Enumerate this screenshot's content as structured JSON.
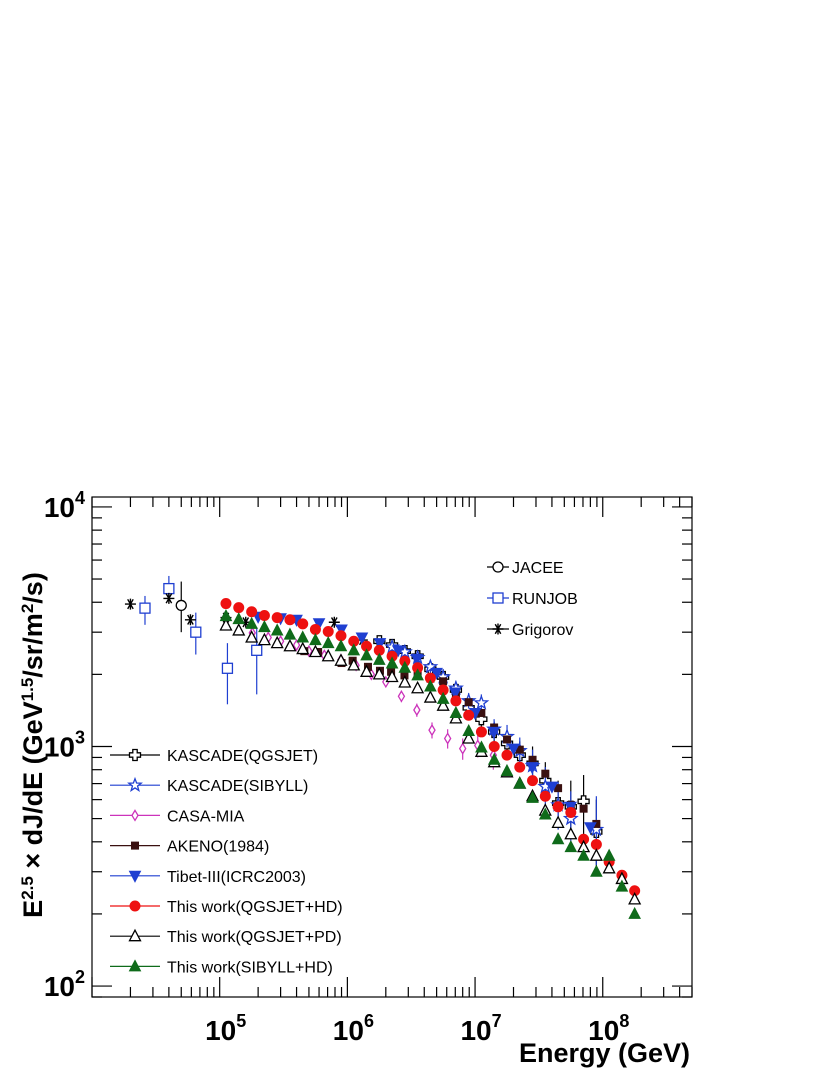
{
  "chart_data": {
    "type": "scatter",
    "title": "",
    "x_scale": "log",
    "y_scale": "log",
    "xlim": [
      10000,
      500000000
    ],
    "ylim": [
      90,
      11000
    ],
    "xlabel": "Energy (GeV)",
    "ylabel": {
      "base": "E",
      "sup1": "2.5",
      "mid": " × dJ/dE (GeV",
      "sup2": "1.5",
      "mid2": "/sr/m",
      "sup3": "2",
      "end": "/s)"
    },
    "x_ticks": [
      {
        "value": 100000,
        "base": "10",
        "exp": "5"
      },
      {
        "value": 1000000,
        "base": "10",
        "exp": "6"
      },
      {
        "value": 10000000,
        "base": "10",
        "exp": "7"
      },
      {
        "value": 100000000,
        "base": "10",
        "exp": "8"
      }
    ],
    "y_ticks": [
      {
        "value": 100,
        "base": "10",
        "exp": "2"
      },
      {
        "value": 1000,
        "base": "10",
        "exp": "3"
      },
      {
        "value": 10000,
        "base": "10",
        "exp": "4"
      }
    ],
    "grid": false,
    "series": [
      {
        "name": "JACEE",
        "marker": "circle-open",
        "color": "#000000",
        "legend": "top-right",
        "points": [
          [
            50000,
            3880,
            3000,
            4880
          ]
        ]
      },
      {
        "name": "RUNJOB",
        "marker": "square-open",
        "color": "#1f3fd1",
        "legend": "top-right",
        "points": [
          [
            26000,
            3780,
            3220,
            4250
          ],
          [
            40000,
            4560,
            4120,
            5150
          ],
          [
            65000,
            3000,
            2420,
            3620
          ],
          [
            115000,
            2120,
            1500,
            2700
          ],
          [
            195000,
            2520,
            1650,
            3150
          ]
        ]
      },
      {
        "name": "Grigorov",
        "marker": "star6",
        "color": "#000000",
        "legend": "top-right",
        "points": [
          [
            20000,
            3930
          ],
          [
            40000,
            4150
          ],
          [
            59000,
            3380
          ],
          [
            112000,
            3450
          ],
          [
            160000,
            3300
          ],
          [
            790000,
            3300
          ],
          [
            1310000,
            2780
          ]
        ]
      },
      {
        "name": "KASCADE(QGSJET)",
        "marker": "cross-open",
        "color": "#000000",
        "legend": "bottom-left",
        "points": [
          [
            1780000,
            2750,
            2600,
            2900
          ],
          [
            2240000,
            2650,
            2500,
            2800
          ],
          [
            2820000,
            2500,
            2350,
            2650
          ],
          [
            3550000,
            2380,
            2230,
            2530
          ],
          [
            4470000,
            2100,
            1970,
            2250
          ],
          [
            5620000,
            1950,
            1820,
            2100
          ],
          [
            7080000,
            1720,
            1600,
            1850
          ],
          [
            8910000,
            1450,
            1340,
            1570
          ],
          [
            11200000,
            1300,
            1180,
            1420
          ],
          [
            14100000,
            1150,
            1030,
            1270
          ],
          [
            17800000,
            1030,
            920,
            1150
          ],
          [
            22400000,
            920,
            810,
            1050
          ],
          [
            28200000,
            850,
            720,
            1000
          ],
          [
            35500000,
            720,
            590,
            860
          ],
          [
            44700000,
            580,
            450,
            720
          ],
          [
            56200000,
            560,
            420,
            720
          ],
          [
            70800000,
            590,
            430,
            760
          ],
          [
            89100000,
            440,
            300,
            600
          ]
        ]
      },
      {
        "name": "KASCADE(SIBYLL)",
        "marker": "star-open",
        "color": "#1f3fd1",
        "legend": "bottom-left",
        "points": [
          [
            2240000,
            2600,
            2450,
            2750
          ],
          [
            2820000,
            2480,
            2330,
            2630
          ],
          [
            3550000,
            2350,
            2200,
            2500
          ],
          [
            4470000,
            2150,
            2020,
            2300
          ],
          [
            5620000,
            1950,
            1820,
            2100
          ],
          [
            7080000,
            1750,
            1630,
            1880
          ],
          [
            8910000,
            1550,
            1440,
            1670
          ],
          [
            11200000,
            1520,
            1400,
            1650
          ],
          [
            14100000,
            1180,
            1060,
            1300
          ],
          [
            17800000,
            1100,
            990,
            1230
          ],
          [
            22400000,
            960,
            850,
            1090
          ],
          [
            28200000,
            830,
            710,
            970
          ],
          [
            35500000,
            680,
            560,
            820
          ],
          [
            44700000,
            570,
            450,
            710
          ],
          [
            56200000,
            500,
            380,
            650
          ],
          [
            89100000,
            450,
            320,
            620
          ]
        ]
      },
      {
        "name": "CASA-MIA",
        "marker": "diamond-open",
        "color": "#cc33bb",
        "legend": "bottom-left",
        "points": [
          [
            180000,
            2980,
            2900,
            3060
          ],
          [
            240000,
            2850,
            2770,
            2930
          ],
          [
            300000,
            2750,
            2670,
            2830
          ],
          [
            400000,
            2650,
            2570,
            2730
          ],
          [
            500000,
            2500,
            2420,
            2580
          ],
          [
            660000,
            2400,
            2320,
            2480
          ],
          [
            890000,
            2300,
            2220,
            2380
          ],
          [
            1170000,
            2180,
            2100,
            2260
          ],
          [
            1540000,
            2000,
            1920,
            2080
          ],
          [
            2000000,
            1860,
            1780,
            1940
          ],
          [
            2650000,
            1620,
            1530,
            1710
          ],
          [
            3500000,
            1420,
            1330,
            1510
          ],
          [
            4600000,
            1170,
            1080,
            1260
          ],
          [
            6100000,
            1080,
            980,
            1180
          ],
          [
            8000000,
            980,
            880,
            1080
          ],
          [
            10500000,
            1010,
            900,
            1130
          ],
          [
            13900000,
            920,
            800,
            1050
          ]
        ]
      },
      {
        "name": "AKENO(1984)",
        "marker": "square-filled",
        "color": "#3a1010",
        "legend": "bottom-left",
        "points": [
          [
            460000,
            2500
          ],
          [
            590000,
            2480
          ],
          [
            900000,
            2230
          ],
          [
            1100000,
            2280
          ],
          [
            1450000,
            2150
          ],
          [
            1800000,
            2070
          ],
          [
            2200000,
            2050
          ],
          [
            2800000,
            1980
          ],
          [
            3550000,
            1980
          ],
          [
            4470000,
            1920
          ],
          [
            5620000,
            1870
          ],
          [
            7080000,
            1640
          ],
          [
            8910000,
            1530
          ],
          [
            11200000,
            1380
          ],
          [
            14100000,
            1200
          ],
          [
            17800000,
            1070
          ],
          [
            22400000,
            970
          ],
          [
            28200000,
            880
          ],
          [
            35500000,
            770
          ],
          [
            44700000,
            670
          ],
          [
            56200000,
            570
          ],
          [
            70800000,
            550
          ],
          [
            89100000,
            475
          ]
        ]
      },
      {
        "name": "Tibet-III(ICRC2003)",
        "marker": "triangle-down-filled",
        "color": "#1f3fd1",
        "legend": "bottom-left",
        "points": [
          [
            200000,
            3480
          ],
          [
            300000,
            3430
          ],
          [
            400000,
            3380
          ],
          [
            600000,
            3270
          ],
          [
            900000,
            3080
          ],
          [
            1300000,
            2850
          ],
          [
            1800000,
            2700
          ],
          [
            2500000,
            2520
          ],
          [
            3500000,
            2320
          ],
          [
            5000000,
            2030
          ],
          [
            7000000,
            1680
          ],
          [
            10000000,
            1380
          ],
          [
            14000000,
            1150
          ],
          [
            20000000,
            980
          ],
          [
            28000000,
            820
          ],
          [
            40000000,
            680
          ],
          [
            56000000,
            560
          ],
          [
            80000000,
            460
          ]
        ]
      },
      {
        "name": "This work(QGSJET+HD)",
        "marker": "circle-filled",
        "color": "#ee1111",
        "legend": "bottom-left",
        "points": [
          [
            112000,
            3950
          ],
          [
            141000,
            3800
          ],
          [
            178000,
            3650
          ],
          [
            224000,
            3520
          ],
          [
            282000,
            3450
          ],
          [
            355000,
            3380
          ],
          [
            447000,
            3250
          ],
          [
            562000,
            3080
          ],
          [
            708000,
            3020
          ],
          [
            891000,
            2900
          ],
          [
            1122000,
            2750
          ],
          [
            1413000,
            2620
          ],
          [
            1778000,
            2520
          ],
          [
            2239000,
            2380
          ],
          [
            2818000,
            2270
          ],
          [
            3548000,
            2130
          ],
          [
            4467000,
            1930
          ],
          [
            5623000,
            1720
          ],
          [
            7079000,
            1550
          ],
          [
            8913000,
            1350
          ],
          [
            11220000,
            1150
          ],
          [
            14130000,
            1000
          ],
          [
            17780000,
            920
          ],
          [
            22390000,
            820
          ],
          [
            28180000,
            720
          ],
          [
            35480000,
            620
          ],
          [
            44670000,
            560
          ],
          [
            56230000,
            530
          ],
          [
            70790000,
            410
          ],
          [
            89130000,
            390
          ],
          [
            112200000,
            330
          ],
          [
            141300000,
            290
          ],
          [
            177800000,
            250
          ]
        ]
      },
      {
        "name": "This work(QGSJET+PD)",
        "marker": "triangle-open",
        "color": "#000000",
        "legend": "bottom-left",
        "points": [
          [
            112000,
            3200
          ],
          [
            141000,
            3050
          ],
          [
            178000,
            2850
          ],
          [
            224000,
            2780
          ],
          [
            282000,
            2700
          ],
          [
            355000,
            2620
          ],
          [
            447000,
            2550
          ],
          [
            562000,
            2480
          ],
          [
            708000,
            2380
          ],
          [
            891000,
            2280
          ],
          [
            1122000,
            2180
          ],
          [
            1413000,
            2050
          ],
          [
            1778000,
            2000
          ],
          [
            2239000,
            1950
          ],
          [
            2818000,
            1850
          ],
          [
            3548000,
            1750
          ],
          [
            4467000,
            1600
          ],
          [
            5623000,
            1480
          ],
          [
            7079000,
            1310
          ],
          [
            8913000,
            1080
          ],
          [
            11220000,
            950
          ],
          [
            14130000,
            860
          ],
          [
            17780000,
            780
          ],
          [
            22390000,
            700
          ],
          [
            28180000,
            620
          ],
          [
            35480000,
            540
          ],
          [
            44670000,
            480
          ],
          [
            56230000,
            430
          ],
          [
            70790000,
            380
          ],
          [
            89130000,
            350
          ],
          [
            112200000,
            310
          ],
          [
            141300000,
            280
          ],
          [
            177800000,
            230
          ]
        ]
      },
      {
        "name": "This work(SIBYLL+HD)",
        "marker": "triangle-filled",
        "color": "#0f6b1a",
        "legend": "bottom-left",
        "points": [
          [
            112000,
            3500
          ],
          [
            141000,
            3400
          ],
          [
            178000,
            3250
          ],
          [
            224000,
            3150
          ],
          [
            282000,
            3050
          ],
          [
            355000,
            2930
          ],
          [
            447000,
            2850
          ],
          [
            562000,
            2780
          ],
          [
            708000,
            2700
          ],
          [
            891000,
            2620
          ],
          [
            1122000,
            2520
          ],
          [
            1413000,
            2400
          ],
          [
            1778000,
            2300
          ],
          [
            2239000,
            2220
          ],
          [
            2818000,
            2130
          ],
          [
            3548000,
            1980
          ],
          [
            4467000,
            1780
          ],
          [
            5623000,
            1580
          ],
          [
            7079000,
            1380
          ],
          [
            8913000,
            1160
          ],
          [
            11220000,
            990
          ],
          [
            14130000,
            880
          ],
          [
            17780000,
            790
          ],
          [
            22390000,
            700
          ],
          [
            28180000,
            610
          ],
          [
            35480000,
            520
          ],
          [
            44670000,
            410
          ],
          [
            56230000,
            380
          ],
          [
            70790000,
            350
          ],
          [
            89130000,
            300
          ],
          [
            112200000,
            350
          ],
          [
            141300000,
            260
          ],
          [
            177800000,
            200
          ]
        ]
      }
    ]
  }
}
